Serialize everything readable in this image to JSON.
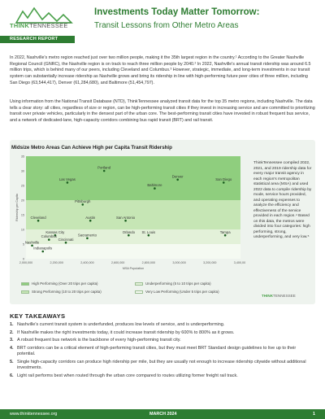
{
  "header": {
    "logo_think": "THINK",
    "logo_tn": "TENNESSEE",
    "badge": "RESEARCH REPORT",
    "title": "Investments Today Matter Tomorrow:",
    "subtitle": "Transit Lessons from Other Metro Areas"
  },
  "body": {
    "p1": "In 2022, Nashville's metro region reached just over two million people, making it the 35th largest region in the country.¹ According to the Greater Nashville Regional Council (GNRC), the Nashville region is on track to reach three million people by 2040.² In 2022, Nashville's annual transit ridership was around 6.5 million trips, which is behind many of our peers, including Cleveland and Columbus.³ However, strategic, immediate, and long-term investments in our transit system can substantially increase ridership as Nashville grows and bring its ridership in line with high-performing future peer cities of three million, including San Diego (63,544,417), Denver (61,284,680), and Baltimore (51,454,797).",
    "p2": "Using information from the National Transit Database (NTD), ThinkTennessee analyzed transit data for the top 35 metro regions, including Nashville. The data tells a clear story: all cities, regardless of size or region, can be high-performing transit cities if they invest in increasing service and are committed to prioritizing transit over private vehicles, particularly in the densest part of the urban core. The best-performing transit cities have invested in robust frequent bus service, and a network of dedicated-lane, high-capacity corridors combining bus rapid transit (BRT) and rail transit."
  },
  "chart_card": {
    "title": "Midsize Metro Areas Can Achieve High per Capita Transit Ridership",
    "side_text": "ThinkTennessee compiled 2022, 2021, and 2019 ridership data for every major transit agency in each region's metropolitan statistical area (MSA) and used 2022 data to compile ridership by mode, service hours provided, and operating expenses to analyze the efficiency and effectiveness of the service provided in each region.⁴ Based on this data, the metros were divided into four categories: high performing, strong, underperforming, and very low.⁵",
    "side_logo_think": "THINK",
    "side_logo_tn": "TENNESSEE"
  },
  "chart_data": {
    "type": "scatter",
    "title": "Midsize Metro Areas Can Achieve High per Capita Transit Ridership",
    "xlabel": "MSA Population",
    "ylabel": "Ridership per Capita",
    "xlim": [
      2000000,
      3400000
    ],
    "ylim": [
      0,
      35
    ],
    "x_ticks": [
      2000000,
      2200000,
      2400000,
      2600000,
      2800000,
      3000000,
      3200000,
      3400000
    ],
    "x_tick_labels": [
      "2,000,000",
      "2,200,000",
      "2,400,000",
      "2,600,000",
      "2,800,000",
      "3,000,000",
      "3,200,000",
      "3,400,000"
    ],
    "y_ticks": [
      0,
      5,
      10,
      15,
      20,
      25,
      30,
      35
    ],
    "bands": [
      {
        "name": "High Performing (Over 20 trips per capita)",
        "from": 20,
        "to": 35,
        "color": "#8fce7e"
      },
      {
        "name": "Strong Performing (10 to 20 trips per capita)",
        "from": 10,
        "to": 20,
        "color": "#c6e6b5"
      },
      {
        "name": "Underperforming (5 to 10 trips per capita)",
        "from": 5,
        "to": 10,
        "color": "#e3f1d9"
      },
      {
        "name": "Very Low Performing (Under 5 trips per capita)",
        "from": 0,
        "to": 5,
        "color": "#f5faf2"
      }
    ],
    "points": [
      {
        "name": "Portland",
        "x": 2510000,
        "y": 30.0
      },
      {
        "name": "Denver",
        "x": 2990000,
        "y": 27.0
      },
      {
        "name": "San Diego",
        "x": 3290000,
        "y": 26.0
      },
      {
        "name": "Las Vegas",
        "x": 2270000,
        "y": 26.0
      },
      {
        "name": "Baltimore",
        "x": 2840000,
        "y": 24.0
      },
      {
        "name": "Pittsburgh",
        "x": 2370000,
        "y": 18.5
      },
      {
        "name": "Austin",
        "x": 2420000,
        "y": 13.0
      },
      {
        "name": "San Antonio",
        "x": 2650000,
        "y": 13.0
      },
      {
        "name": "Cleveland",
        "x": 2080000,
        "y": 13.0
      },
      {
        "name": "Kansas City",
        "x": 2190000,
        "y": 8.0
      },
      {
        "name": "Sacramento",
        "x": 2400000,
        "y": 7.0
      },
      {
        "name": "Orlando",
        "x": 2670000,
        "y": 8.0
      },
      {
        "name": "St. Louis",
        "x": 2800000,
        "y": 8.0
      },
      {
        "name": "Tampa",
        "x": 3300000,
        "y": 8.0
      },
      {
        "name": "Columbus",
        "x": 2150000,
        "y": 6.5
      },
      {
        "name": "Cincinnati",
        "x": 2260000,
        "y": 5.5
      },
      {
        "name": "Nashville",
        "x": 2040000,
        "y": 4.5
      },
      {
        "name": "Indianapolis",
        "x": 2110000,
        "y": 2.5
      }
    ]
  },
  "takeaways": {
    "title": "KEY TAKEAWAYS",
    "items": [
      {
        "num": "1.",
        "text": "Nashville's current transit system is underfunded, produces low levels of service, and is underperforming."
      },
      {
        "num": "2.",
        "text": "If Nashville makes the right investments today, it could increase transit ridership by 600% to 800% as it grows."
      },
      {
        "num": "3.",
        "text": "A robust frequent bus network is the backbone of every high-performing transit city."
      },
      {
        "num": "4.",
        "text": "BRT corridors can be a critical element of high-performing transit cities, but they must meet BRT Standard design guidelines to live up to their potential."
      },
      {
        "num": "5.",
        "text": "Single high-capacity corridors can produce high ridership per mile, but they are usually not enough to increase ridership citywide without additional investments."
      },
      {
        "num": "6.",
        "text": "Light rail performs best when routed through the urban core compared to routes utilizing former freight rail track."
      }
    ]
  },
  "footer": {
    "url": "www.thinktennessee.org",
    "date": "MARCH 2024",
    "page": "1"
  },
  "colors": {
    "brand_green": "#2e7d32",
    "accent_green": "#4aa04a"
  }
}
